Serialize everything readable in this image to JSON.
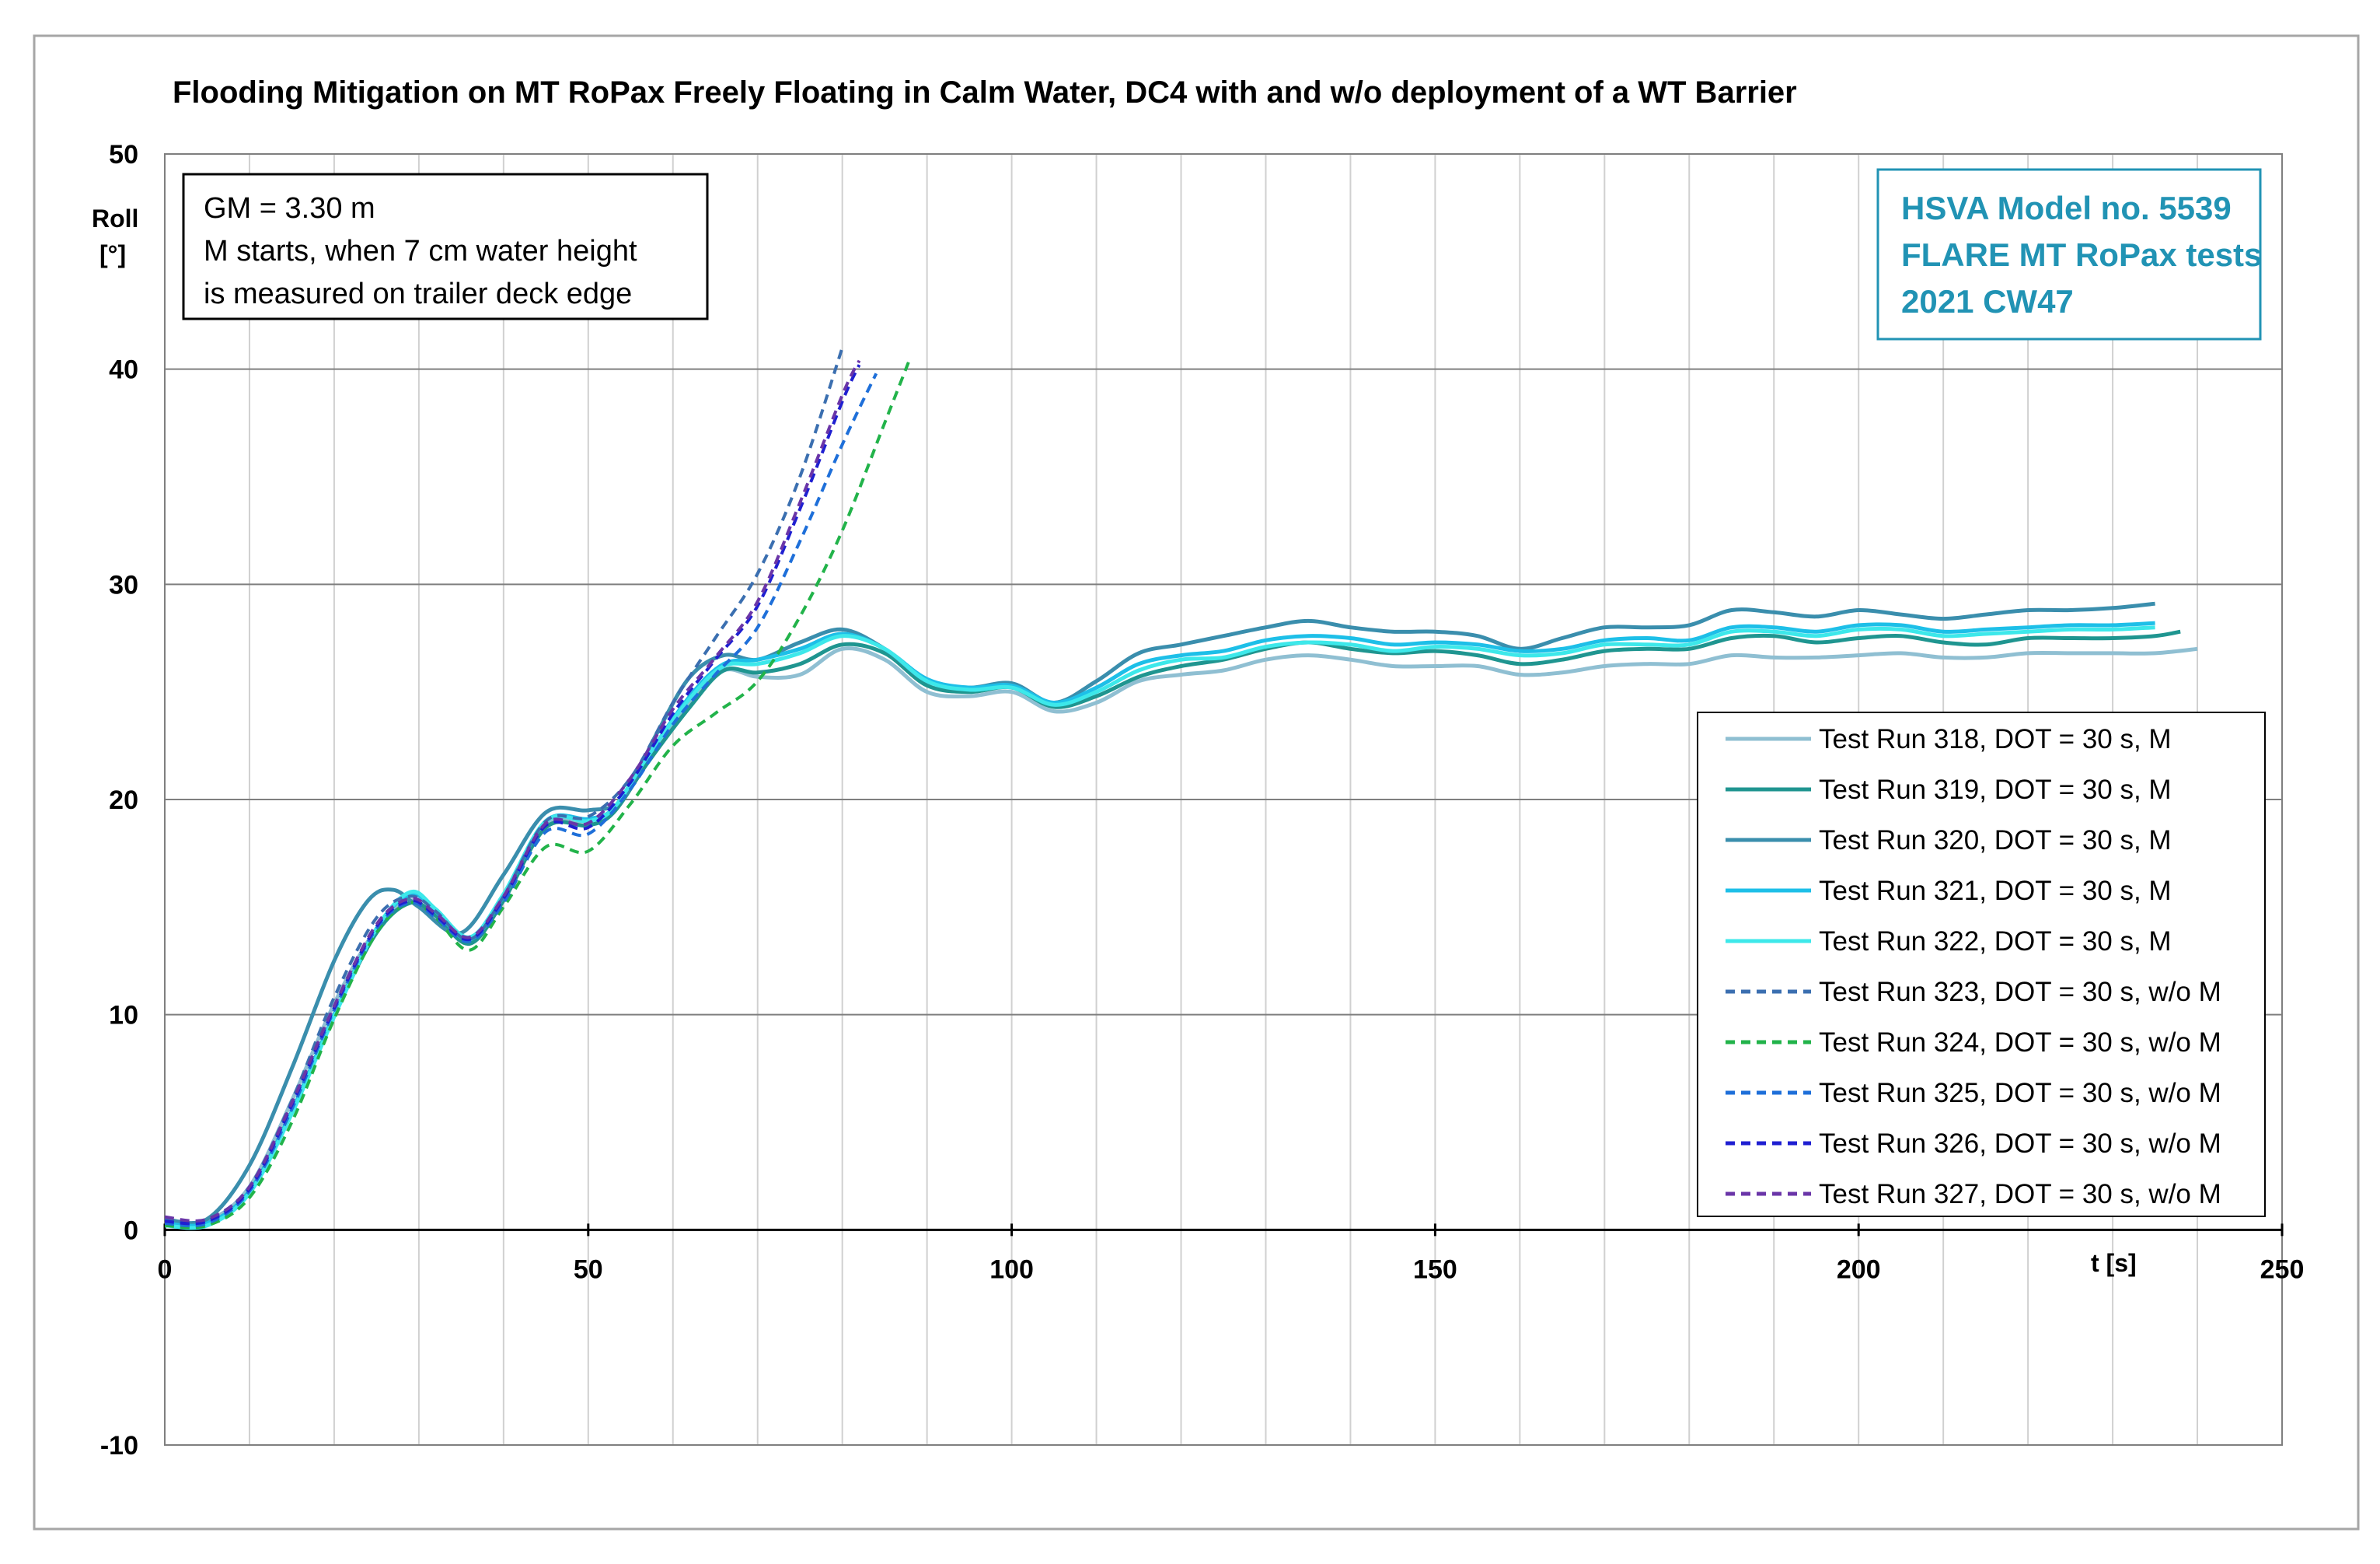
{
  "chart_data": {
    "type": "line",
    "title": "Flooding Mitigation on MT RoPax Freely Floating in Calm Water, DC4 with and w/o deployment of a WT Barrier",
    "xlabel": "t [s]",
    "ylabel_line1": "Roll",
    "ylabel_line2": "[°]",
    "xlim": [
      0,
      250
    ],
    "ylim": [
      -10,
      50
    ],
    "xticks": [
      0,
      50,
      100,
      150,
      200,
      250
    ],
    "yticks": [
      -10,
      0,
      10,
      20,
      30,
      40,
      50
    ],
    "x_minor_grid": 10,
    "y_major_grid": 10,
    "legend_position": "right",
    "note_box": {
      "lines": [
        "GM = 3.30 m",
        "M starts, when 7 cm water height",
        "is measured on trailer deck edge"
      ]
    },
    "info_box": {
      "lines": [
        "HSVA Model no. 5539",
        "FLARE MT RoPax tests",
        "2021 CW47"
      ],
      "color": "#2193b4"
    },
    "series": [
      {
        "name": "Test Run 318, DOT = 30 s, M",
        "color": "#8fbfd2",
        "dash": "solid",
        "x": [
          0,
          5,
          10,
          15,
          20,
          25,
          29,
          32,
          36,
          40,
          45,
          50,
          53,
          57,
          62,
          66,
          70,
          75,
          80,
          85,
          90,
          95,
          100,
          105,
          110,
          115,
          120,
          125,
          130,
          135,
          140,
          145,
          150,
          155,
          160,
          165,
          170,
          175,
          180,
          185,
          190,
          195,
          200,
          205,
          210,
          215,
          220,
          225,
          230,
          235,
          240
        ],
        "y": [
          0.4,
          0.4,
          2.0,
          6.0,
          10.5,
          14.0,
          15.3,
          14.5,
          13.5,
          15.5,
          18.8,
          19.0,
          19.5,
          21.8,
          24.5,
          26.0,
          25.7,
          25.8,
          27.0,
          26.5,
          25.0,
          24.8,
          25.0,
          24.1,
          24.5,
          25.5,
          25.8,
          26.0,
          26.5,
          26.7,
          26.5,
          26.2,
          26.2,
          26.2,
          25.8,
          25.9,
          26.2,
          26.3,
          26.3,
          26.7,
          26.6,
          26.6,
          26.7,
          26.8,
          26.6,
          26.6,
          26.8,
          26.8,
          26.8,
          26.8,
          27.0
        ]
      },
      {
        "name": "Test Run 319, DOT = 30 s, M",
        "color": "#1f9590",
        "dash": "solid",
        "x": [
          0,
          5,
          10,
          15,
          20,
          25,
          29,
          32,
          36,
          40,
          45,
          50,
          53,
          57,
          62,
          66,
          70,
          75,
          80,
          85,
          90,
          95,
          100,
          105,
          110,
          115,
          120,
          125,
          130,
          135,
          140,
          145,
          150,
          155,
          160,
          165,
          170,
          175,
          180,
          185,
          190,
          195,
          200,
          205,
          210,
          215,
          220,
          225,
          230,
          235,
          238
        ],
        "y": [
          0.3,
          0.3,
          1.8,
          5.5,
          10.0,
          13.8,
          15.2,
          14.6,
          13.3,
          15.3,
          18.7,
          18.8,
          19.4,
          21.7,
          24.3,
          26.0,
          25.9,
          26.3,
          27.2,
          26.8,
          25.3,
          25.0,
          25.2,
          24.3,
          24.8,
          25.7,
          26.2,
          26.5,
          27.0,
          27.3,
          27.0,
          26.8,
          26.9,
          26.7,
          26.3,
          26.5,
          26.9,
          27.0,
          27.0,
          27.5,
          27.6,
          27.3,
          27.5,
          27.6,
          27.3,
          27.2,
          27.5,
          27.5,
          27.5,
          27.6,
          27.8
        ]
      },
      {
        "name": "Test Run 320, DOT = 30 s, M",
        "color": "#3a8ead",
        "dash": "solid",
        "x": [
          0,
          5,
          10,
          15,
          20,
          24,
          27,
          30,
          35,
          40,
          45,
          50,
          54,
          58,
          62,
          66,
          70,
          75,
          80,
          85,
          90,
          95,
          100,
          105,
          110,
          115,
          120,
          125,
          130,
          135,
          140,
          145,
          150,
          155,
          160,
          165,
          170,
          175,
          180,
          185,
          190,
          195,
          200,
          205,
          210,
          215,
          220,
          225,
          230,
          235
        ],
        "y": [
          0.5,
          0.5,
          3.0,
          7.5,
          12.5,
          15.3,
          15.8,
          15.0,
          13.8,
          16.5,
          19.4,
          19.5,
          20.0,
          23.0,
          25.7,
          26.7,
          26.5,
          27.3,
          27.9,
          27.0,
          25.5,
          25.2,
          25.4,
          24.5,
          25.5,
          26.8,
          27.2,
          27.6,
          28.0,
          28.3,
          28.0,
          27.8,
          27.8,
          27.6,
          27.0,
          27.5,
          28.0,
          28.0,
          28.1,
          28.8,
          28.7,
          28.5,
          28.8,
          28.6,
          28.4,
          28.6,
          28.8,
          28.8,
          28.9,
          29.1
        ]
      },
      {
        "name": "Test Run 321, DOT = 30 s, M",
        "color": "#1dbfe8",
        "dash": "solid",
        "x": [
          0,
          5,
          10,
          15,
          20,
          25,
          29,
          32,
          36,
          40,
          45,
          50,
          53,
          57,
          62,
          66,
          70,
          75,
          80,
          85,
          90,
          95,
          100,
          105,
          110,
          115,
          120,
          125,
          130,
          135,
          140,
          145,
          150,
          155,
          160,
          165,
          170,
          175,
          180,
          185,
          190,
          195,
          200,
          205,
          210,
          215,
          220,
          225,
          230,
          235
        ],
        "y": [
          0.3,
          0.3,
          1.8,
          5.5,
          10.0,
          14.0,
          15.6,
          14.8,
          13.5,
          15.5,
          19.0,
          19.1,
          19.6,
          22.0,
          24.8,
          26.3,
          26.5,
          27.0,
          27.7,
          27.0,
          25.6,
          25.2,
          25.3,
          24.5,
          25.2,
          26.3,
          26.7,
          26.9,
          27.4,
          27.6,
          27.5,
          27.2,
          27.3,
          27.2,
          26.9,
          27.0,
          27.4,
          27.5,
          27.4,
          28.0,
          28.0,
          27.8,
          28.1,
          28.1,
          27.8,
          27.9,
          28.0,
          28.1,
          28.1,
          28.2
        ]
      },
      {
        "name": "Test Run 322, DOT = 30 s, M",
        "color": "#3de8ea",
        "dash": "solid",
        "x": [
          0,
          5,
          10,
          15,
          20,
          25,
          29,
          32,
          36,
          40,
          45,
          50,
          53,
          57,
          62,
          66,
          70,
          75,
          80,
          85,
          90,
          95,
          100,
          105,
          110,
          115,
          120,
          125,
          130,
          135,
          140,
          145,
          150,
          155,
          160,
          165,
          170,
          175,
          180,
          185,
          190,
          195,
          200,
          205,
          210,
          215,
          220,
          225,
          230,
          235
        ],
        "y": [
          0.2,
          0.2,
          1.7,
          5.4,
          9.9,
          14.0,
          15.7,
          14.9,
          13.6,
          15.6,
          19.0,
          19.0,
          19.6,
          22.0,
          24.7,
          26.2,
          26.3,
          26.8,
          27.6,
          27.0,
          25.5,
          25.1,
          25.2,
          24.4,
          25.0,
          26.0,
          26.5,
          26.6,
          27.1,
          27.3,
          27.2,
          26.9,
          27.1,
          27.0,
          26.7,
          26.8,
          27.2,
          27.2,
          27.2,
          27.8,
          27.8,
          27.6,
          27.9,
          27.9,
          27.6,
          27.7,
          27.8,
          27.9,
          27.9,
          28.0
        ]
      },
      {
        "name": "Test Run 323, DOT = 30 s, w/o M",
        "color": "#3b6fb0",
        "dash": "dashed",
        "x": [
          0,
          5,
          10,
          15,
          20,
          25,
          29,
          32,
          36,
          40,
          45,
          50,
          55,
          60,
          65,
          70,
          75,
          80
        ],
        "y": [
          0.5,
          0.4,
          2.0,
          6.0,
          10.8,
          14.5,
          15.5,
          14.8,
          13.5,
          15.5,
          19.0,
          19.2,
          21.0,
          24.5,
          27.5,
          30.5,
          35.0,
          41.0
        ]
      },
      {
        "name": "Test Run 324, DOT = 30 s, w/o M",
        "color": "#22b34a",
        "dash": "dashed",
        "x": [
          0,
          5,
          10,
          15,
          20,
          25,
          29,
          32,
          36,
          40,
          45,
          50,
          55,
          60,
          65,
          70,
          75,
          80,
          85,
          88
        ],
        "y": [
          0.2,
          0.2,
          1.5,
          5.0,
          9.8,
          13.8,
          15.2,
          14.5,
          13.0,
          15.0,
          17.8,
          17.6,
          19.8,
          22.5,
          24.0,
          25.5,
          28.5,
          32.5,
          37.5,
          40.5
        ]
      },
      {
        "name": "Test Run 325, DOT = 30 s, w/o M",
        "color": "#1e6fd9",
        "dash": "dashed",
        "x": [
          0,
          5,
          10,
          15,
          20,
          25,
          29,
          32,
          36,
          40,
          45,
          50,
          55,
          60,
          65,
          70,
          75,
          80,
          84
        ],
        "y": [
          0.3,
          0.3,
          1.8,
          5.6,
          10.2,
          14.0,
          15.2,
          14.5,
          13.4,
          15.2,
          18.5,
          18.4,
          20.5,
          23.5,
          25.8,
          28.0,
          32.0,
          36.5,
          39.8
        ]
      },
      {
        "name": "Test Run 326, DOT = 30 s, w/o M",
        "color": "#1f1fd1",
        "dash": "dashed",
        "x": [
          0,
          5,
          10,
          15,
          20,
          25,
          29,
          32,
          36,
          40,
          45,
          50,
          55,
          60,
          65,
          70,
          75,
          80,
          82
        ],
        "y": [
          0.4,
          0.4,
          1.9,
          5.8,
          10.3,
          14.1,
          15.3,
          14.6,
          13.5,
          15.4,
          18.8,
          18.7,
          20.8,
          24.0,
          26.5,
          29.0,
          33.5,
          38.5,
          40.2
        ]
      },
      {
        "name": "Test Run 327, DOT = 30 s, w/o M",
        "color": "#6a35a8",
        "dash": "dashed",
        "x": [
          0,
          5,
          10,
          15,
          20,
          25,
          29,
          32,
          36,
          40,
          45,
          50,
          55,
          60,
          65,
          70,
          75,
          80,
          82
        ],
        "y": [
          0.6,
          0.5,
          2.0,
          5.9,
          10.4,
          14.2,
          15.4,
          14.7,
          13.6,
          15.5,
          18.9,
          18.9,
          21.0,
          24.2,
          26.6,
          29.2,
          33.8,
          38.8,
          40.4
        ]
      }
    ]
  }
}
